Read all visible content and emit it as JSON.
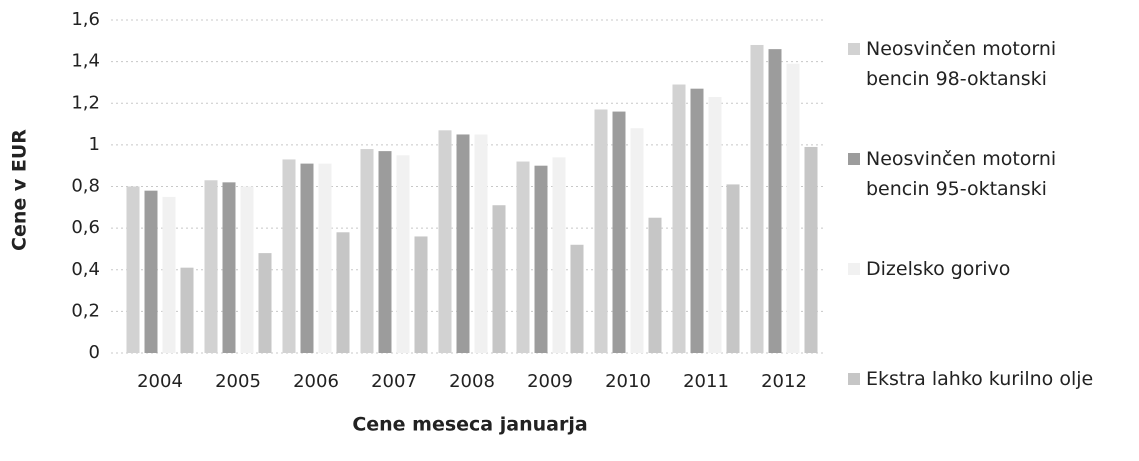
{
  "chart_data": {
    "type": "bar",
    "categories": [
      "2004",
      "2005",
      "2006",
      "2007",
      "2008",
      "2009",
      "2010",
      "2011",
      "2012"
    ],
    "series": [
      {
        "name": "Neosvinčen motorni bencin 98-oktanski",
        "color": "#d2d2d2",
        "values": [
          0.8,
          0.83,
          0.93,
          0.98,
          1.07,
          0.92,
          1.17,
          1.29,
          1.48
        ]
      },
      {
        "name": "Neosvinčen motorni bencin 95-oktanski",
        "color": "#9c9c9c",
        "values": [
          0.78,
          0.82,
          0.91,
          0.97,
          1.05,
          0.9,
          1.16,
          1.27,
          1.46
        ]
      },
      {
        "name": "Dizelsko gorivo",
        "color": "#f1f1f1",
        "values": [
          0.75,
          0.8,
          0.91,
          0.95,
          1.05,
          0.94,
          1.08,
          1.23,
          1.39
        ]
      },
      {
        "name": "Ekstra lahko kurilno olje",
        "color": "#c6c6c6",
        "values": [
          0.41,
          0.48,
          0.58,
          0.56,
          0.71,
          0.52,
          0.65,
          0.81,
          0.99
        ]
      }
    ],
    "xlabel": "Cene meseca januarja",
    "ylabel": "Cene v EUR",
    "ylim": [
      0,
      1.6
    ],
    "yticks": [
      0,
      {
        "value": 0.2,
        "label": "0,2"
      },
      {
        "value": 0.4,
        "label": "0,4"
      },
      {
        "value": 0.6,
        "label": "0,6"
      },
      {
        "value": 0.8,
        "label": "0,8"
      },
      1,
      {
        "value": 1.2,
        "label": "1,2"
      },
      {
        "value": 1.4,
        "label": "1,4"
      },
      {
        "value": 1.6,
        "label": "1,6"
      }
    ],
    "grid": true
  }
}
